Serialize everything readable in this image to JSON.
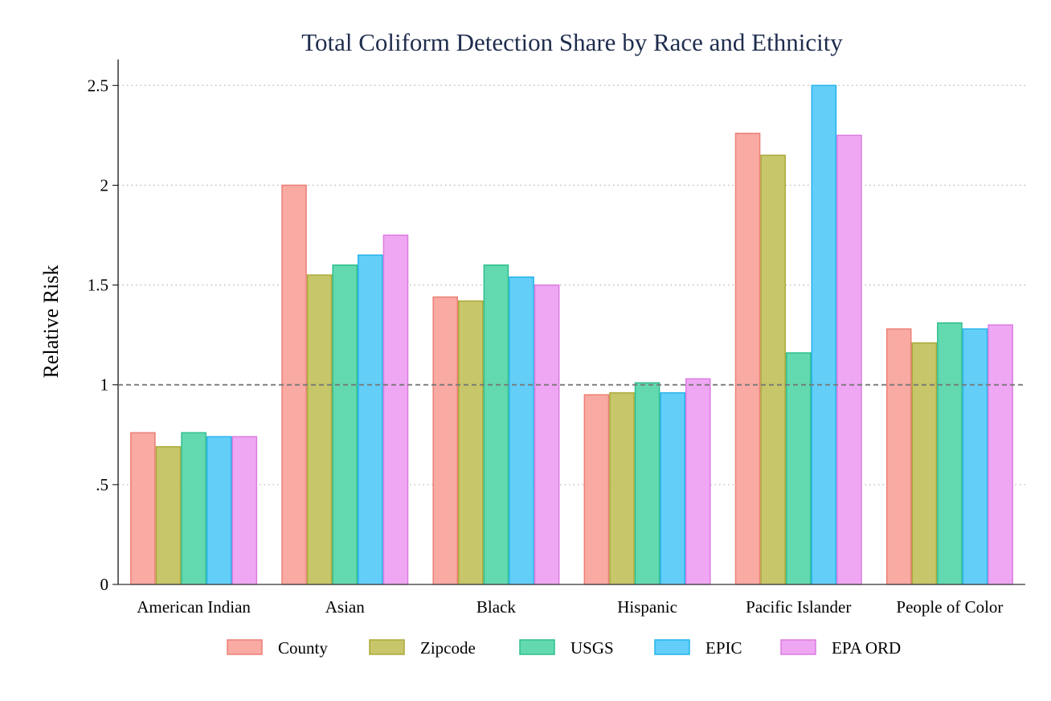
{
  "chart_data": {
    "type": "bar",
    "title": "Total Coliform Detection Share by Race and Ethnicity",
    "xlabel": "",
    "ylabel": "Relative Risk",
    "ylim": [
      0,
      2.63
    ],
    "yticks": [
      0,
      0.5,
      1,
      1.5,
      2,
      2.5
    ],
    "ytick_labels": [
      "0",
      ".5",
      "1",
      "1.5",
      "2",
      "2.5"
    ],
    "reference_line": 1,
    "grid": "horizontal dotted",
    "legend_position": "bottom",
    "categories": [
      "American Indian",
      "Asian",
      "Black",
      "Hispanic",
      "Pacific Islander",
      "People of Color"
    ],
    "series": [
      {
        "name": "County",
        "fill": "#f8aaa3",
        "stroke": "#ec7f76",
        "values": [
          0.76,
          2.0,
          1.44,
          0.95,
          2.26,
          1.28
        ]
      },
      {
        "name": "Zipcode",
        "fill": "#c7c66a",
        "stroke": "#aba938",
        "values": [
          0.69,
          1.55,
          1.42,
          0.96,
          2.15,
          1.21
        ]
      },
      {
        "name": "USGS",
        "fill": "#63d9b0",
        "stroke": "#2fbf8c",
        "values": [
          0.76,
          1.6,
          1.6,
          1.01,
          1.16,
          1.31
        ]
      },
      {
        "name": "EPIC",
        "fill": "#63cff9",
        "stroke": "#24b3ea",
        "values": [
          0.74,
          1.65,
          1.54,
          0.96,
          2.5,
          1.28
        ]
      },
      {
        "name": "EPA ORD",
        "fill": "#efa7f3",
        "stroke": "#db7ce0",
        "values": [
          0.74,
          1.75,
          1.5,
          1.03,
          2.25,
          1.3
        ]
      }
    ]
  }
}
